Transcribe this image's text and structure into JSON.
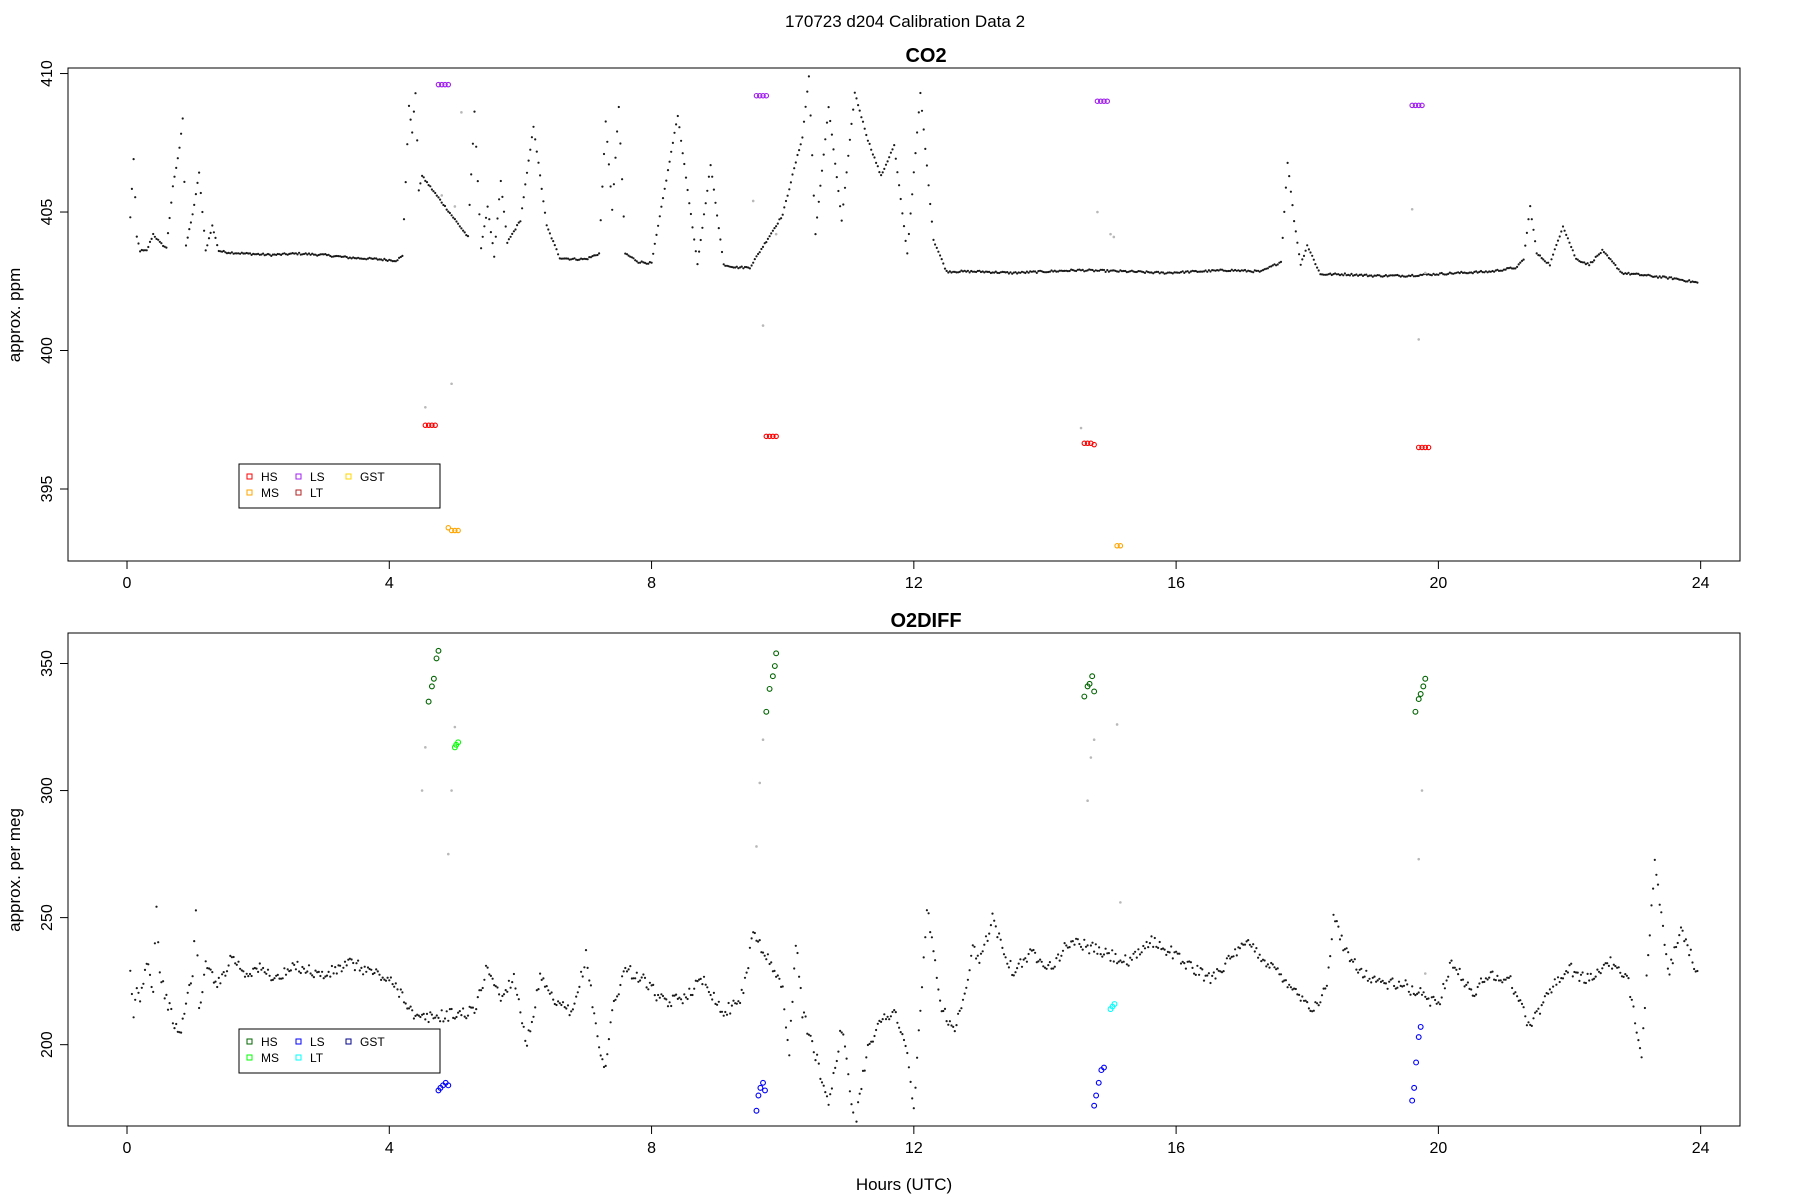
{
  "figure": {
    "title": "170723   d204   Calibration Data 2",
    "xlabel": "Hours (UTC)"
  },
  "chart_data": [
    {
      "type": "scatter",
      "title": "CO2",
      "xlabel": "",
      "ylabel": "approx. ppm",
      "xlim": [
        -0.9,
        24.6
      ],
      "ylim": [
        392.4,
        410.2
      ],
      "xticks": [
        0,
        4,
        8,
        12,
        16,
        20,
        24
      ],
      "yticks": [
        395,
        400,
        405,
        410
      ],
      "grid": false,
      "legend": {
        "placement": "bottom-left",
        "entries": [
          {
            "label": "HS",
            "color": "#ff0000"
          },
          {
            "label": "MS",
            "color": "#ffa500"
          },
          {
            "label": "LS",
            "color": "#a020f0"
          },
          {
            "label": "LT",
            "color": "#b22222"
          },
          {
            "label": "GST",
            "color": "#ffd700"
          }
        ]
      },
      "series": [
        {
          "name": "HS",
          "color": "#ff0000",
          "marker": "circle",
          "x": [
            4.55,
            4.6,
            4.65,
            4.7,
            9.75,
            9.8,
            9.85,
            9.9,
            14.6,
            14.65,
            14.7,
            14.75,
            19.7,
            19.75,
            19.8,
            19.85
          ],
          "y": [
            397.3,
            397.3,
            397.3,
            397.3,
            396.9,
            396.9,
            396.9,
            396.9,
            396.65,
            396.65,
            396.65,
            396.6,
            396.5,
            396.5,
            396.5,
            396.5
          ]
        },
        {
          "name": "MS",
          "color": "#ffa500",
          "marker": "circle",
          "x": [
            4.9,
            4.95,
            5.0,
            5.05,
            15.1,
            15.15
          ],
          "y": [
            393.6,
            393.5,
            393.5,
            393.5,
            392.95,
            392.95
          ]
        },
        {
          "name": "LS",
          "color": "#a020f0",
          "marker": "circle",
          "x": [
            4.75,
            4.8,
            4.85,
            4.9,
            9.6,
            9.65,
            9.7,
            9.75,
            14.8,
            14.85,
            14.9,
            14.95,
            19.6,
            19.65,
            19.7,
            19.75
          ],
          "y": [
            409.6,
            409.6,
            409.6,
            409.6,
            409.2,
            409.2,
            409.2,
            409.2,
            409.0,
            409.0,
            409.0,
            409.0,
            408.85,
            408.85,
            408.85,
            408.85
          ]
        },
        {
          "name": "LT",
          "color": "#b22222",
          "marker": "circle",
          "x": [],
          "y": []
        },
        {
          "name": "GST",
          "color": "#ffd700",
          "marker": "circle",
          "x": [],
          "y": []
        }
      ],
      "ambient": {
        "x": [
          0.05,
          0.1,
          0.15,
          0.2,
          0.3,
          0.4,
          0.5,
          0.6,
          0.7,
          0.8,
          0.85,
          0.9,
          1.0,
          1.1,
          1.2,
          1.3,
          1.4,
          1.5,
          1.8,
          2.2,
          2.6,
          3.0,
          3.4,
          3.8,
          4.1,
          4.2,
          4.3,
          4.35,
          4.4,
          4.45,
          4.5,
          5.2,
          5.3,
          5.4,
          5.5,
          5.6,
          5.7,
          5.8,
          6.0,
          6.2,
          6.4,
          6.6,
          6.8,
          7.0,
          7.2,
          7.3,
          7.4,
          7.5,
          7.6,
          7.8,
          8.0,
          8.4,
          8.6,
          8.7,
          8.9,
          9.1,
          9.3,
          9.5,
          10.0,
          10.2,
          10.3,
          10.4,
          10.5,
          10.7,
          10.9,
          11.1,
          11.3,
          11.5,
          11.7,
          11.9,
          12.1,
          12.3,
          12.5,
          13.0,
          13.5,
          14.0,
          14.5,
          15.3,
          15.8,
          16.3,
          16.8,
          17.3,
          17.6,
          17.7,
          17.8,
          17.9,
          18.0,
          18.2,
          18.6,
          19.0,
          19.5,
          19.9,
          20.3,
          20.8,
          21.2,
          21.3,
          21.4,
          21.5,
          21.7,
          21.9,
          22.1,
          22.3,
          22.5,
          22.8,
          23.2,
          23.6,
          23.95
        ],
        "y": [
          404.8,
          406.9,
          404.1,
          403.6,
          403.6,
          404.2,
          403.9,
          403.7,
          405.9,
          407.3,
          408.4,
          403.8,
          404.9,
          406.4,
          403.6,
          404.5,
          403.6,
          403.55,
          403.5,
          403.45,
          403.5,
          403.45,
          403.35,
          403.3,
          403.25,
          403.4,
          408.8,
          407.9,
          409.3,
          405.8,
          406.3,
          404.1,
          408.6,
          403.7,
          405.2,
          403.4,
          406.1,
          403.9,
          404.7,
          408.1,
          404.5,
          403.35,
          403.3,
          403.3,
          403.5,
          408.3,
          405.1,
          408.8,
          403.5,
          403.2,
          403.15,
          408.5,
          404.9,
          403.1,
          406.7,
          403.1,
          403.0,
          403.0,
          404.9,
          406.8,
          407.7,
          409.9,
          404.2,
          408.8,
          404.7,
          409.3,
          407.6,
          406.3,
          407.4,
          403.5,
          409.3,
          404.0,
          402.85,
          402.85,
          402.8,
          402.85,
          402.9,
          402.85,
          402.8,
          402.85,
          402.9,
          402.85,
          403.2,
          406.8,
          404.7,
          403.1,
          403.8,
          402.75,
          402.75,
          402.7,
          402.7,
          402.75,
          402.8,
          402.85,
          403.0,
          403.3,
          405.2,
          403.5,
          403.1,
          404.5,
          403.3,
          403.1,
          403.6,
          402.8,
          402.7,
          402.6,
          402.45
        ]
      },
      "flagged": {
        "x": [
          4.55,
          4.8,
          4.95,
          5.0,
          5.1,
          9.55,
          9.7,
          9.9,
          14.55,
          14.8,
          15.0,
          15.05,
          19.6,
          19.7,
          19.8
        ],
        "y": [
          397.95,
          405.6,
          398.8,
          405.2,
          408.6,
          405.4,
          400.9,
          404.2,
          397.2,
          405.0,
          404.2,
          404.1,
          405.1,
          400.4,
          402.8
        ]
      }
    },
    {
      "type": "scatter",
      "title": "O2DIFF",
      "xlabel": "Hours (UTC)",
      "ylabel": "approx. per meg",
      "xlim": [
        -0.9,
        24.6
      ],
      "ylim": [
        168,
        362
      ],
      "xticks": [
        0,
        4,
        8,
        12,
        16,
        20,
        24
      ],
      "yticks": [
        200,
        250,
        300,
        350
      ],
      "grid": false,
      "legend": {
        "placement": "bottom-left",
        "entries": [
          {
            "label": "HS",
            "color": "#006400"
          },
          {
            "label": "MS",
            "color": "#00ff00"
          },
          {
            "label": "LS",
            "color": "#0000ff"
          },
          {
            "label": "LT",
            "color": "#00ffff"
          },
          {
            "label": "GST",
            "color": "#00008b"
          }
        ]
      },
      "series": [
        {
          "name": "HS",
          "color": "#006400",
          "marker": "circle",
          "x": [
            4.6,
            4.65,
            4.68,
            4.72,
            4.75,
            9.75,
            9.8,
            9.85,
            9.88,
            9.9,
            14.6,
            14.65,
            14.68,
            14.72,
            14.75,
            19.65,
            19.7,
            19.73,
            19.77,
            19.8
          ],
          "y": [
            335,
            341,
            344,
            352,
            355,
            331,
            340,
            345,
            349,
            354,
            337,
            341,
            342,
            345,
            339,
            331,
            336,
            338,
            341,
            344
          ]
        },
        {
          "name": "MS",
          "color": "#00ff00",
          "marker": "circle",
          "x": [
            5.0,
            5.02,
            5.05
          ],
          "y": [
            317,
            318,
            319
          ]
        },
        {
          "name": "LS",
          "color": "#0000ff",
          "marker": "circle",
          "x": [
            4.75,
            4.78,
            4.82,
            4.86,
            4.9,
            9.6,
            9.63,
            9.66,
            9.7,
            9.73,
            14.75,
            14.78,
            14.82,
            14.86,
            14.9,
            19.6,
            19.63,
            19.66,
            19.7,
            19.73
          ],
          "y": [
            182,
            183,
            184,
            185,
            184,
            174,
            180,
            183,
            185,
            182,
            176,
            180,
            185,
            190,
            191,
            178,
            183,
            193,
            203,
            207
          ]
        },
        {
          "name": "LT",
          "color": "#00ffff",
          "marker": "circle",
          "x": [
            15.0,
            15.03,
            15.06
          ],
          "y": [
            214,
            215,
            216
          ]
        },
        {
          "name": "GST",
          "color": "#00008b",
          "marker": "circle",
          "x": [],
          "y": []
        }
      ],
      "ambient": {
        "x": [
          0.05,
          0.1,
          0.15,
          0.2,
          0.3,
          0.4,
          0.45,
          0.5,
          0.6,
          0.7,
          0.8,
          0.9,
          1.0,
          1.05,
          1.1,
          1.2,
          1.4,
          1.6,
          1.8,
          2.0,
          2.3,
          2.6,
          3.0,
          3.4,
          3.8,
          4.0,
          4.2,
          4.4,
          5.3,
          5.5,
          5.7,
          5.9,
          6.1,
          6.3,
          6.5,
          6.8,
          7.0,
          7.2,
          7.3,
          7.4,
          7.6,
          7.9,
          8.2,
          8.5,
          8.8,
          9.1,
          9.4,
          9.55,
          10.0,
          10.1,
          10.2,
          10.3,
          10.5,
          10.7,
          10.9,
          11.1,
          11.3,
          11.5,
          11.7,
          11.9,
          12.0,
          12.2,
          12.4,
          12.6,
          12.8,
          12.9,
          13.0,
          13.2,
          13.5,
          13.8,
          14.1,
          14.4,
          15.3,
          15.6,
          15.9,
          16.2,
          16.5,
          16.8,
          17.1,
          17.4,
          17.7,
          17.9,
          18.1,
          18.3,
          18.4,
          18.6,
          18.9,
          19.2,
          19.5,
          20.0,
          20.2,
          20.5,
          20.8,
          21.1,
          21.4,
          21.7,
          22.0,
          22.3,
          22.6,
          22.9,
          23.1,
          23.2,
          23.3,
          23.5,
          23.7,
          23.95
        ],
        "y": [
          227,
          210,
          223,
          217,
          234,
          222,
          256,
          228,
          218,
          210,
          203,
          216,
          229,
          252,
          214,
          231,
          224,
          235,
          228,
          230,
          226,
          231,
          227,
          232,
          228,
          225,
          220,
          210,
          213,
          231,
          218,
          227,
          200,
          226,
          217,
          212,
          235,
          199,
          190,
          214,
          230,
          225,
          216,
          219,
          226,
          212,
          220,
          245,
          222,
          196,
          241,
          213,
          196,
          177,
          207,
          168,
          200,
          209,
          214,
          196,
          174,
          254,
          217,
          205,
          220,
          238,
          232,
          250,
          229,
          236,
          231,
          241,
          232,
          241,
          237,
          231,
          226,
          233,
          240,
          232,
          225,
          219,
          214,
          222,
          250,
          236,
          227,
          224,
          223,
          216,
          233,
          220,
          228,
          225,
          207,
          222,
          230,
          225,
          233,
          224,
          197,
          236,
          272,
          228,
          244,
          229
        ]
      },
      "flagged": {
        "x": [
          4.5,
          4.55,
          4.9,
          4.95,
          5.0,
          9.6,
          9.65,
          9.7,
          14.65,
          14.7,
          14.75,
          15.1,
          15.15,
          19.7,
          19.75,
          19.8
        ],
        "y": [
          300,
          317,
          275,
          300,
          325,
          278,
          303,
          320,
          296,
          313,
          320,
          326,
          256,
          273,
          300,
          228
        ]
      }
    }
  ]
}
